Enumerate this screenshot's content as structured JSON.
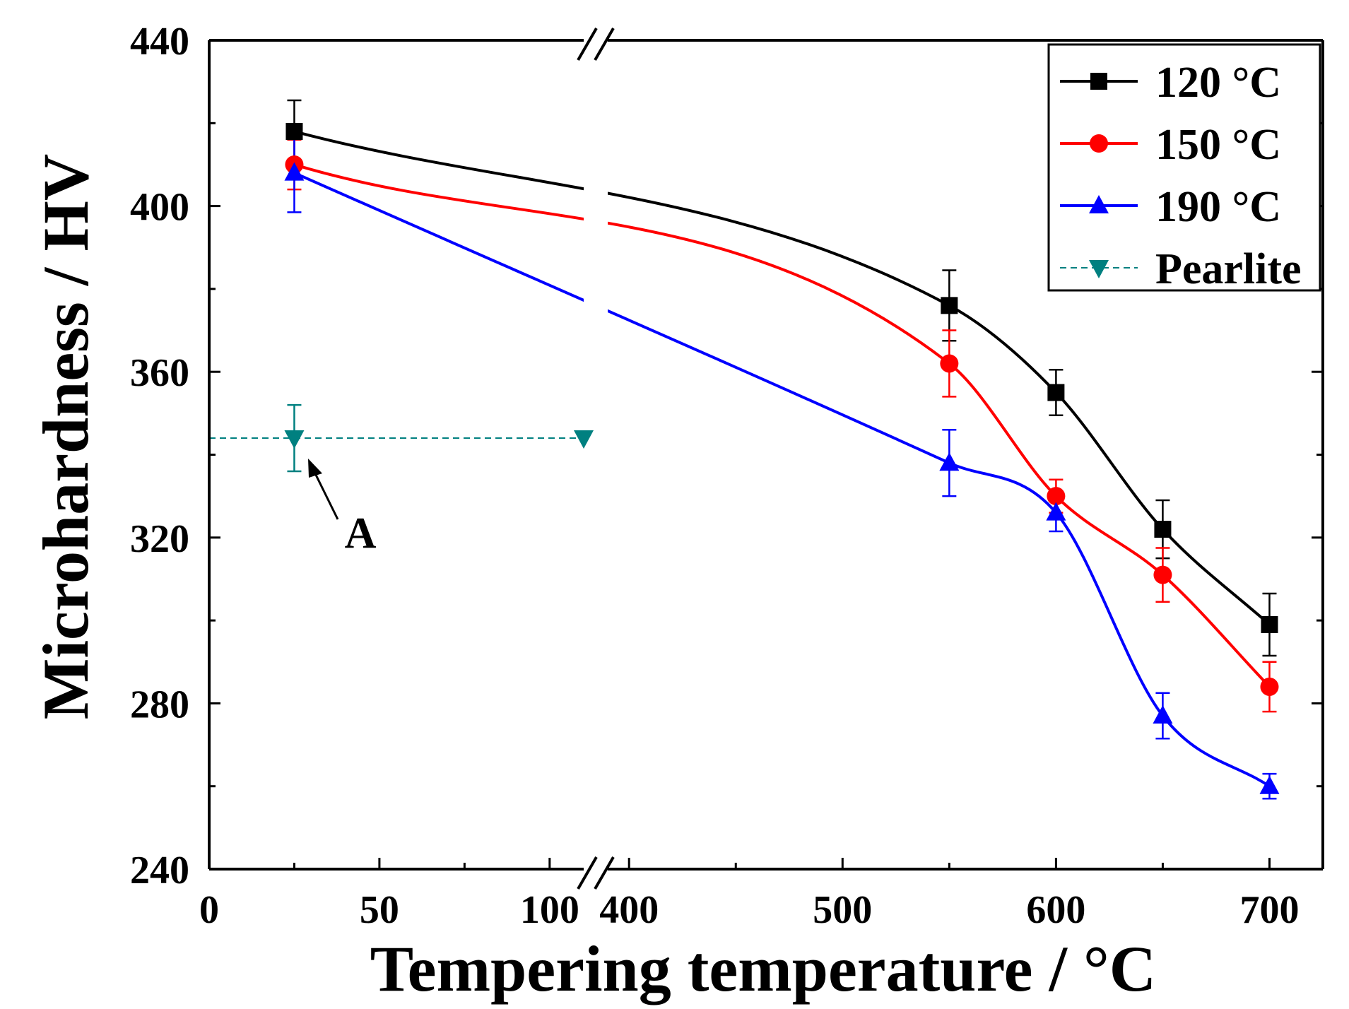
{
  "chart_data": {
    "type": "line",
    "title": "",
    "xlabel": "Tempering temperature / °C",
    "ylabel": "Microhardness / HV",
    "ylim": [
      240,
      440
    ],
    "yticks": [
      "240",
      "280",
      "320",
      "360",
      "400",
      "440"
    ],
    "x_segments": [
      {
        "range": [
          0,
          110
        ],
        "ticks": [
          "0",
          "50",
          "100"
        ]
      },
      {
        "range": [
          390,
          725
        ],
        "ticks": [
          "400",
          "500",
          "600",
          "700"
        ]
      }
    ],
    "axis_break": "between 100 and 400 (double slash)",
    "series": [
      {
        "name": "120 °C",
        "color": "#000000",
        "marker": "square",
        "x": [
          25,
          550,
          600,
          650,
          700
        ],
        "y": [
          418,
          376,
          355,
          322,
          299
        ],
        "err": [
          7.5,
          8.5,
          5.5,
          7.0,
          7.5
        ]
      },
      {
        "name": "150 °C",
        "color": "#ff0000",
        "marker": "circle",
        "x": [
          25,
          550,
          600,
          650,
          700
        ],
        "y": [
          410,
          362,
          330,
          311,
          284
        ],
        "err": [
          6.0,
          8.0,
          4.0,
          6.5,
          6.0
        ]
      },
      {
        "name": "190 °C",
        "color": "#0000ff",
        "marker": "triangle-up",
        "x": [
          25,
          550,
          600,
          650,
          700
        ],
        "y": [
          408,
          338,
          326,
          277,
          260
        ],
        "err": [
          9.5,
          8.0,
          4.5,
          5.5,
          3.0
        ]
      },
      {
        "name": "Pearlite",
        "color": "#008080",
        "marker": "triangle-down",
        "dashed": true,
        "x": [
          25
        ],
        "y": [
          344
        ],
        "err": [
          8.0
        ]
      }
    ],
    "annotations": [
      {
        "text": "A",
        "points_to": "Pearlite data point"
      }
    ],
    "legend_position": "top-right"
  }
}
